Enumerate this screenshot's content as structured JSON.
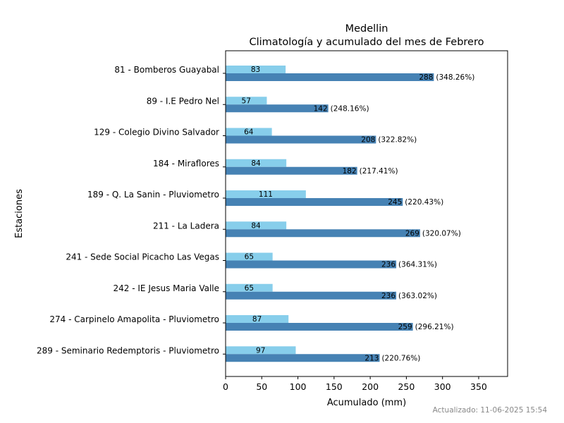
{
  "chart_data": {
    "type": "bar",
    "orientation": "horizontal",
    "title": "Medellin",
    "subtitle": "Climatología y acumulado del mes de Febrero",
    "xlabel": "Acumulado (mm)",
    "ylabel": "Estaciones",
    "xlim": [
      0,
      390
    ],
    "xticks": [
      0,
      50,
      100,
      150,
      200,
      250,
      300,
      350
    ],
    "grid": false,
    "categories": [
      "81 - Bomberos Guayabal",
      "89 - I.E Pedro Nel",
      "129 - Colegio Divino Salvador",
      "184 - Miraflores",
      "189 - Q. La Sanin - Pluviometro",
      "211 - La Ladera",
      "241 - Sede Social Picacho Las Vegas",
      "242 - IE Jesus Maria Valle",
      "274 - Carpinelo Amapolita - Pluviometro",
      "289 - Seminario Redemptoris - Pluviometro"
    ],
    "series": [
      {
        "color": "#87ceeb",
        "values": [
          83,
          57,
          64,
          84,
          111,
          84,
          65,
          65,
          87,
          97
        ],
        "labels": [
          "83",
          "57",
          "64",
          "84",
          "111",
          "84",
          "65",
          "65",
          "87",
          "97"
        ]
      },
      {
        "color": "#4682b4",
        "values": [
          288,
          142,
          208,
          182,
          245,
          269,
          236,
          236,
          259,
          213
        ],
        "labels": [
          "288",
          "142",
          "208",
          "182",
          "245",
          "269",
          "236",
          "236",
          "259",
          "213"
        ],
        "percent_labels": [
          "(348.26%)",
          "(248.16%)",
          "(322.82%)",
          "(217.41%)",
          "(220.43%)",
          "(320.07%)",
          "(364.31%)",
          "(363.02%)",
          "(296.21%)",
          "(220.76%)"
        ]
      }
    ]
  },
  "footer": {
    "updated": "Actualizado: 11-06-2025 15:54"
  }
}
